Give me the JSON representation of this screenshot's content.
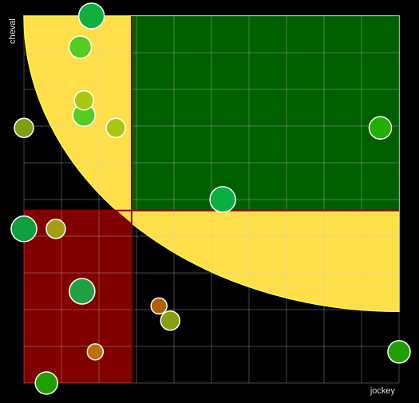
{
  "chart_data": {
    "type": "scatter",
    "title": "",
    "xlabel": "jockey",
    "ylabel": "cheval",
    "xlim": [
      0,
      10
    ],
    "ylim": [
      0,
      10
    ],
    "grid": true,
    "zones": [
      {
        "name": "bottom-left",
        "x": [
          0,
          2.87
        ],
        "y": [
          0,
          4.7
        ],
        "color": "#800000"
      },
      {
        "name": "top-right",
        "x": [
          2.87,
          10
        ],
        "y": [
          4.7,
          10
        ],
        "color": "#006000"
      }
    ],
    "zone_divider_color": "#8b0000",
    "curve": {
      "type": "quarter-ellipse",
      "center": [
        10,
        10
      ],
      "radius_x": 10,
      "radius_y": 8.05,
      "fill": "#ffe04a",
      "stroke": "#ffff33"
    },
    "points": [
      {
        "x": 1.8,
        "y": 10.0,
        "size": "large",
        "color": "#10b040"
      },
      {
        "x": 1.5,
        "y": 9.15,
        "size": "medium",
        "color": "#55cc20"
      },
      {
        "x": 1.6,
        "y": 7.3,
        "size": "medium",
        "color": "#55cc20"
      },
      {
        "x": 1.6,
        "y": 7.7,
        "size": "small",
        "color": "#a8c810"
      },
      {
        "x": 2.45,
        "y": 6.95,
        "size": "small",
        "color": "#a8c810"
      },
      {
        "x": 0.0,
        "y": 6.95,
        "size": "small",
        "color": "#7f9f10"
      },
      {
        "x": 9.5,
        "y": 6.95,
        "size": "medium",
        "color": "#20b000"
      },
      {
        "x": 5.3,
        "y": 5.0,
        "size": "large",
        "color": "#08b040"
      },
      {
        "x": 0.0,
        "y": 4.2,
        "size": "large",
        "color": "#10a040"
      },
      {
        "x": 0.85,
        "y": 4.2,
        "size": "small",
        "color": "#a0a010"
      },
      {
        "x": 1.55,
        "y": 2.5,
        "size": "large",
        "color": "#20a040"
      },
      {
        "x": 3.6,
        "y": 2.1,
        "size": "xsmall",
        "color": "#b06000"
      },
      {
        "x": 3.9,
        "y": 1.7,
        "size": "small",
        "color": "#88a010"
      },
      {
        "x": 1.9,
        "y": 0.85,
        "size": "xsmall",
        "color": "#c07000"
      },
      {
        "x": 10.0,
        "y": 0.85,
        "size": "medium",
        "color": "#20a000"
      },
      {
        "x": 0.6,
        "y": 0.0,
        "size": "medium",
        "color": "#20a000"
      }
    ]
  }
}
